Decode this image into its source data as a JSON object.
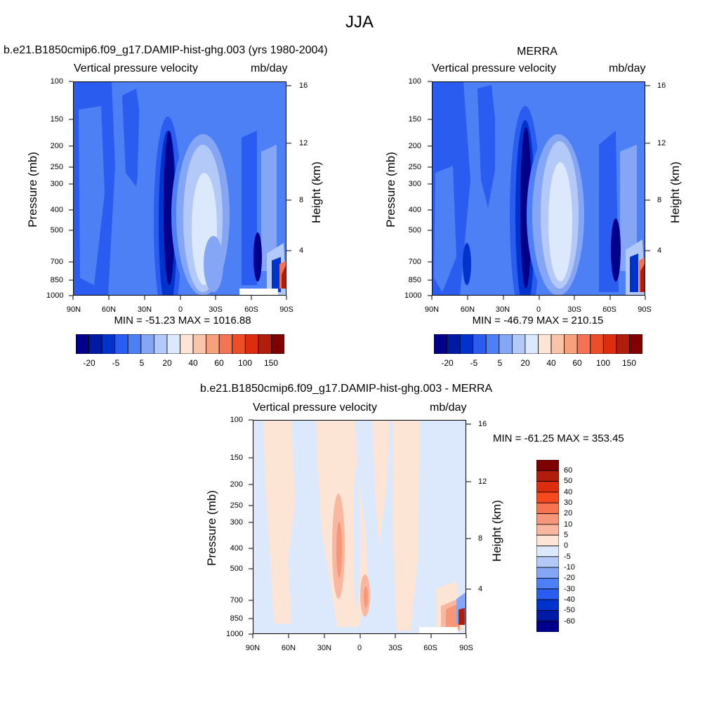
{
  "figure_title": "JJA",
  "chart_data": [
    {
      "type": "heatmap",
      "title": "b.e21.B1850cmip6.f09_g17.DAMIP-hist-ghg.003 (yrs 1980-2004)",
      "subtitle_left": "Vertical pressure velocity",
      "subtitle_right": "mb/day",
      "ylabel": "Pressure (mb)",
      "ylabel_right": "Height (km)",
      "x_ticks": [
        "90N",
        "60N",
        "30N",
        "0",
        "30S",
        "60S",
        "90S"
      ],
      "y_ticks": [
        "100",
        "150",
        "200",
        "250",
        "300",
        "400",
        "500",
        "700",
        "850",
        "1000"
      ],
      "y_right_ticks": [
        "16",
        "12",
        "8",
        "4"
      ],
      "stats": "MIN = -51.23  MAX = 1016.88",
      "colorbar_labels": [
        "-20",
        "-5",
        "5",
        "20",
        "40",
        "60",
        "100",
        "150"
      ],
      "colorbar_colors": [
        "#00008b",
        "#001aa3",
        "#0033cc",
        "#2b5cf0",
        "#4d7ff5",
        "#85a6f5",
        "#b3c9f7",
        "#dce8fc",
        "#fde5d6",
        "#fac4a8",
        "#f7a07c",
        "#f37352",
        "#ee4d28",
        "#dc2d0e",
        "#b01d0a",
        "#800000"
      ]
    },
    {
      "type": "heatmap",
      "title": "MERRA",
      "subtitle_left": "Vertical pressure velocity",
      "subtitle_right": "mb/day",
      "ylabel": "Pressure (mb)",
      "ylabel_right": "Height (km)",
      "x_ticks": [
        "90N",
        "60N",
        "30N",
        "0",
        "30S",
        "60S",
        "90S"
      ],
      "y_ticks": [
        "100",
        "150",
        "200",
        "250",
        "300",
        "400",
        "500",
        "700",
        "850",
        "1000"
      ],
      "y_right_ticks": [
        "16",
        "12",
        "8",
        "4"
      ],
      "stats": "MIN = -46.79  MAX = 210.15",
      "colorbar_labels": [
        "-20",
        "-5",
        "5",
        "20",
        "40",
        "60",
        "100",
        "150"
      ],
      "colorbar_colors": [
        "#00008b",
        "#001aa3",
        "#0033cc",
        "#2b5cf0",
        "#4d7ff5",
        "#85a6f5",
        "#b3c9f7",
        "#dce8fc",
        "#fde5d6",
        "#fac4a8",
        "#f7a07c",
        "#f37352",
        "#ee4d28",
        "#dc2d0e",
        "#b01d0a",
        "#800000"
      ]
    },
    {
      "type": "heatmap",
      "title": "b.e21.B1850cmip6.f09_g17.DAMIP-hist-ghg.003 - MERRA",
      "subtitle_left": "Vertical pressure velocity",
      "subtitle_right": "mb/day",
      "ylabel": "Pressure (mb)",
      "ylabel_right": "Height (km)",
      "x_ticks": [
        "90N",
        "60N",
        "30N",
        "0",
        "30S",
        "60S",
        "90S"
      ],
      "y_ticks": [
        "100",
        "150",
        "200",
        "250",
        "300",
        "400",
        "500",
        "700",
        "850",
        "1000"
      ],
      "y_right_ticks": [
        "16",
        "12",
        "8",
        "4"
      ],
      "stats": "MIN = -61.25  MAX = 353.45",
      "colorbar_labels": [
        "60",
        "50",
        "40",
        "30",
        "20",
        "10",
        "5",
        "0",
        "-5",
        "-10",
        "-20",
        "-30",
        "-40",
        "-50",
        "-60"
      ],
      "colorbar_colors": [
        "#800000",
        "#b01d0a",
        "#dc2d0e",
        "#f64a1e",
        "#f77450",
        "#f7977a",
        "#f9b79f",
        "#fde5d6",
        "#dce8fc",
        "#b3c9f7",
        "#85a6f5",
        "#4d7ff5",
        "#2b5cf0",
        "#0033cc",
        "#001aa3",
        "#00008b"
      ]
    }
  ]
}
